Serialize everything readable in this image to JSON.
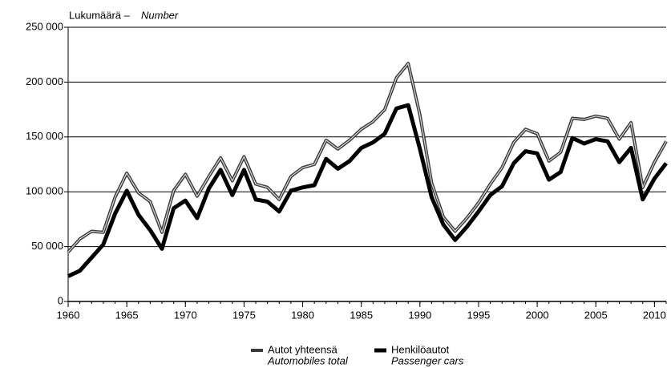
{
  "chart_data": {
    "type": "line",
    "y_label": {
      "fi": "Lukumäärä –",
      "en": "Number"
    },
    "x": [
      1960,
      1961,
      1962,
      1963,
      1964,
      1965,
      1966,
      1967,
      1968,
      1969,
      1970,
      1971,
      1972,
      1973,
      1974,
      1975,
      1976,
      1977,
      1978,
      1979,
      1980,
      1981,
      1982,
      1983,
      1984,
      1985,
      1986,
      1987,
      1988,
      1989,
      1990,
      1991,
      1992,
      1993,
      1994,
      1995,
      1996,
      1997,
      1998,
      1999,
      2000,
      2001,
      2002,
      2003,
      2004,
      2005,
      2006,
      2007,
      2008,
      2009,
      2010,
      2011
    ],
    "series": [
      {
        "name": "Autot yhteensä",
        "name_en": "Automobiles total",
        "color": "#3a3a3a",
        "values": [
          45000,
          57000,
          64000,
          63000,
          95000,
          117000,
          99000,
          91000,
          63000,
          101000,
          116000,
          96000,
          114000,
          131000,
          110000,
          132000,
          107000,
          104000,
          93000,
          114000,
          122000,
          125000,
          147000,
          139000,
          147000,
          157000,
          164000,
          175000,
          204000,
          217000,
          170000,
          108000,
          77000,
          64000,
          76000,
          90000,
          107000,
          122000,
          145000,
          157000,
          153000,
          128000,
          136000,
          167000,
          166000,
          169000,
          167000,
          148000,
          163000,
          104000,
          127000,
          146000
        ]
      },
      {
        "name": "Henkilöautot",
        "name_en": "Passenger cars",
        "color": "#000000",
        "values": [
          23000,
          28000,
          40000,
          52000,
          80000,
          101000,
          79000,
          65000,
          48000,
          85000,
          92000,
          76000,
          103000,
          120000,
          97000,
          120000,
          93000,
          91000,
          82000,
          101000,
          104000,
          106000,
          130000,
          121000,
          128000,
          140000,
          145000,
          153000,
          176000,
          179000,
          139000,
          95000,
          70000,
          56000,
          68000,
          82000,
          97000,
          105000,
          126000,
          137000,
          135000,
          111000,
          118000,
          149000,
          144000,
          148000,
          146000,
          127000,
          140000,
          93000,
          112000,
          126000
        ]
      }
    ],
    "xlim": [
      1960,
      2011
    ],
    "xticks": [
      1960,
      1965,
      1970,
      1975,
      1980,
      1985,
      1990,
      1995,
      2000,
      2005,
      2010
    ],
    "ylim": [
      0,
      250000
    ],
    "yticks": [
      0,
      {
        "value": 50000,
        "label": "50 000"
      },
      {
        "value": 100000,
        "label": "100 000"
      },
      {
        "value": 150000,
        "label": "150 000"
      },
      {
        "value": 200000,
        "label": "200 000"
      },
      {
        "value": 250000,
        "label": "250 000"
      }
    ],
    "grid": true
  }
}
